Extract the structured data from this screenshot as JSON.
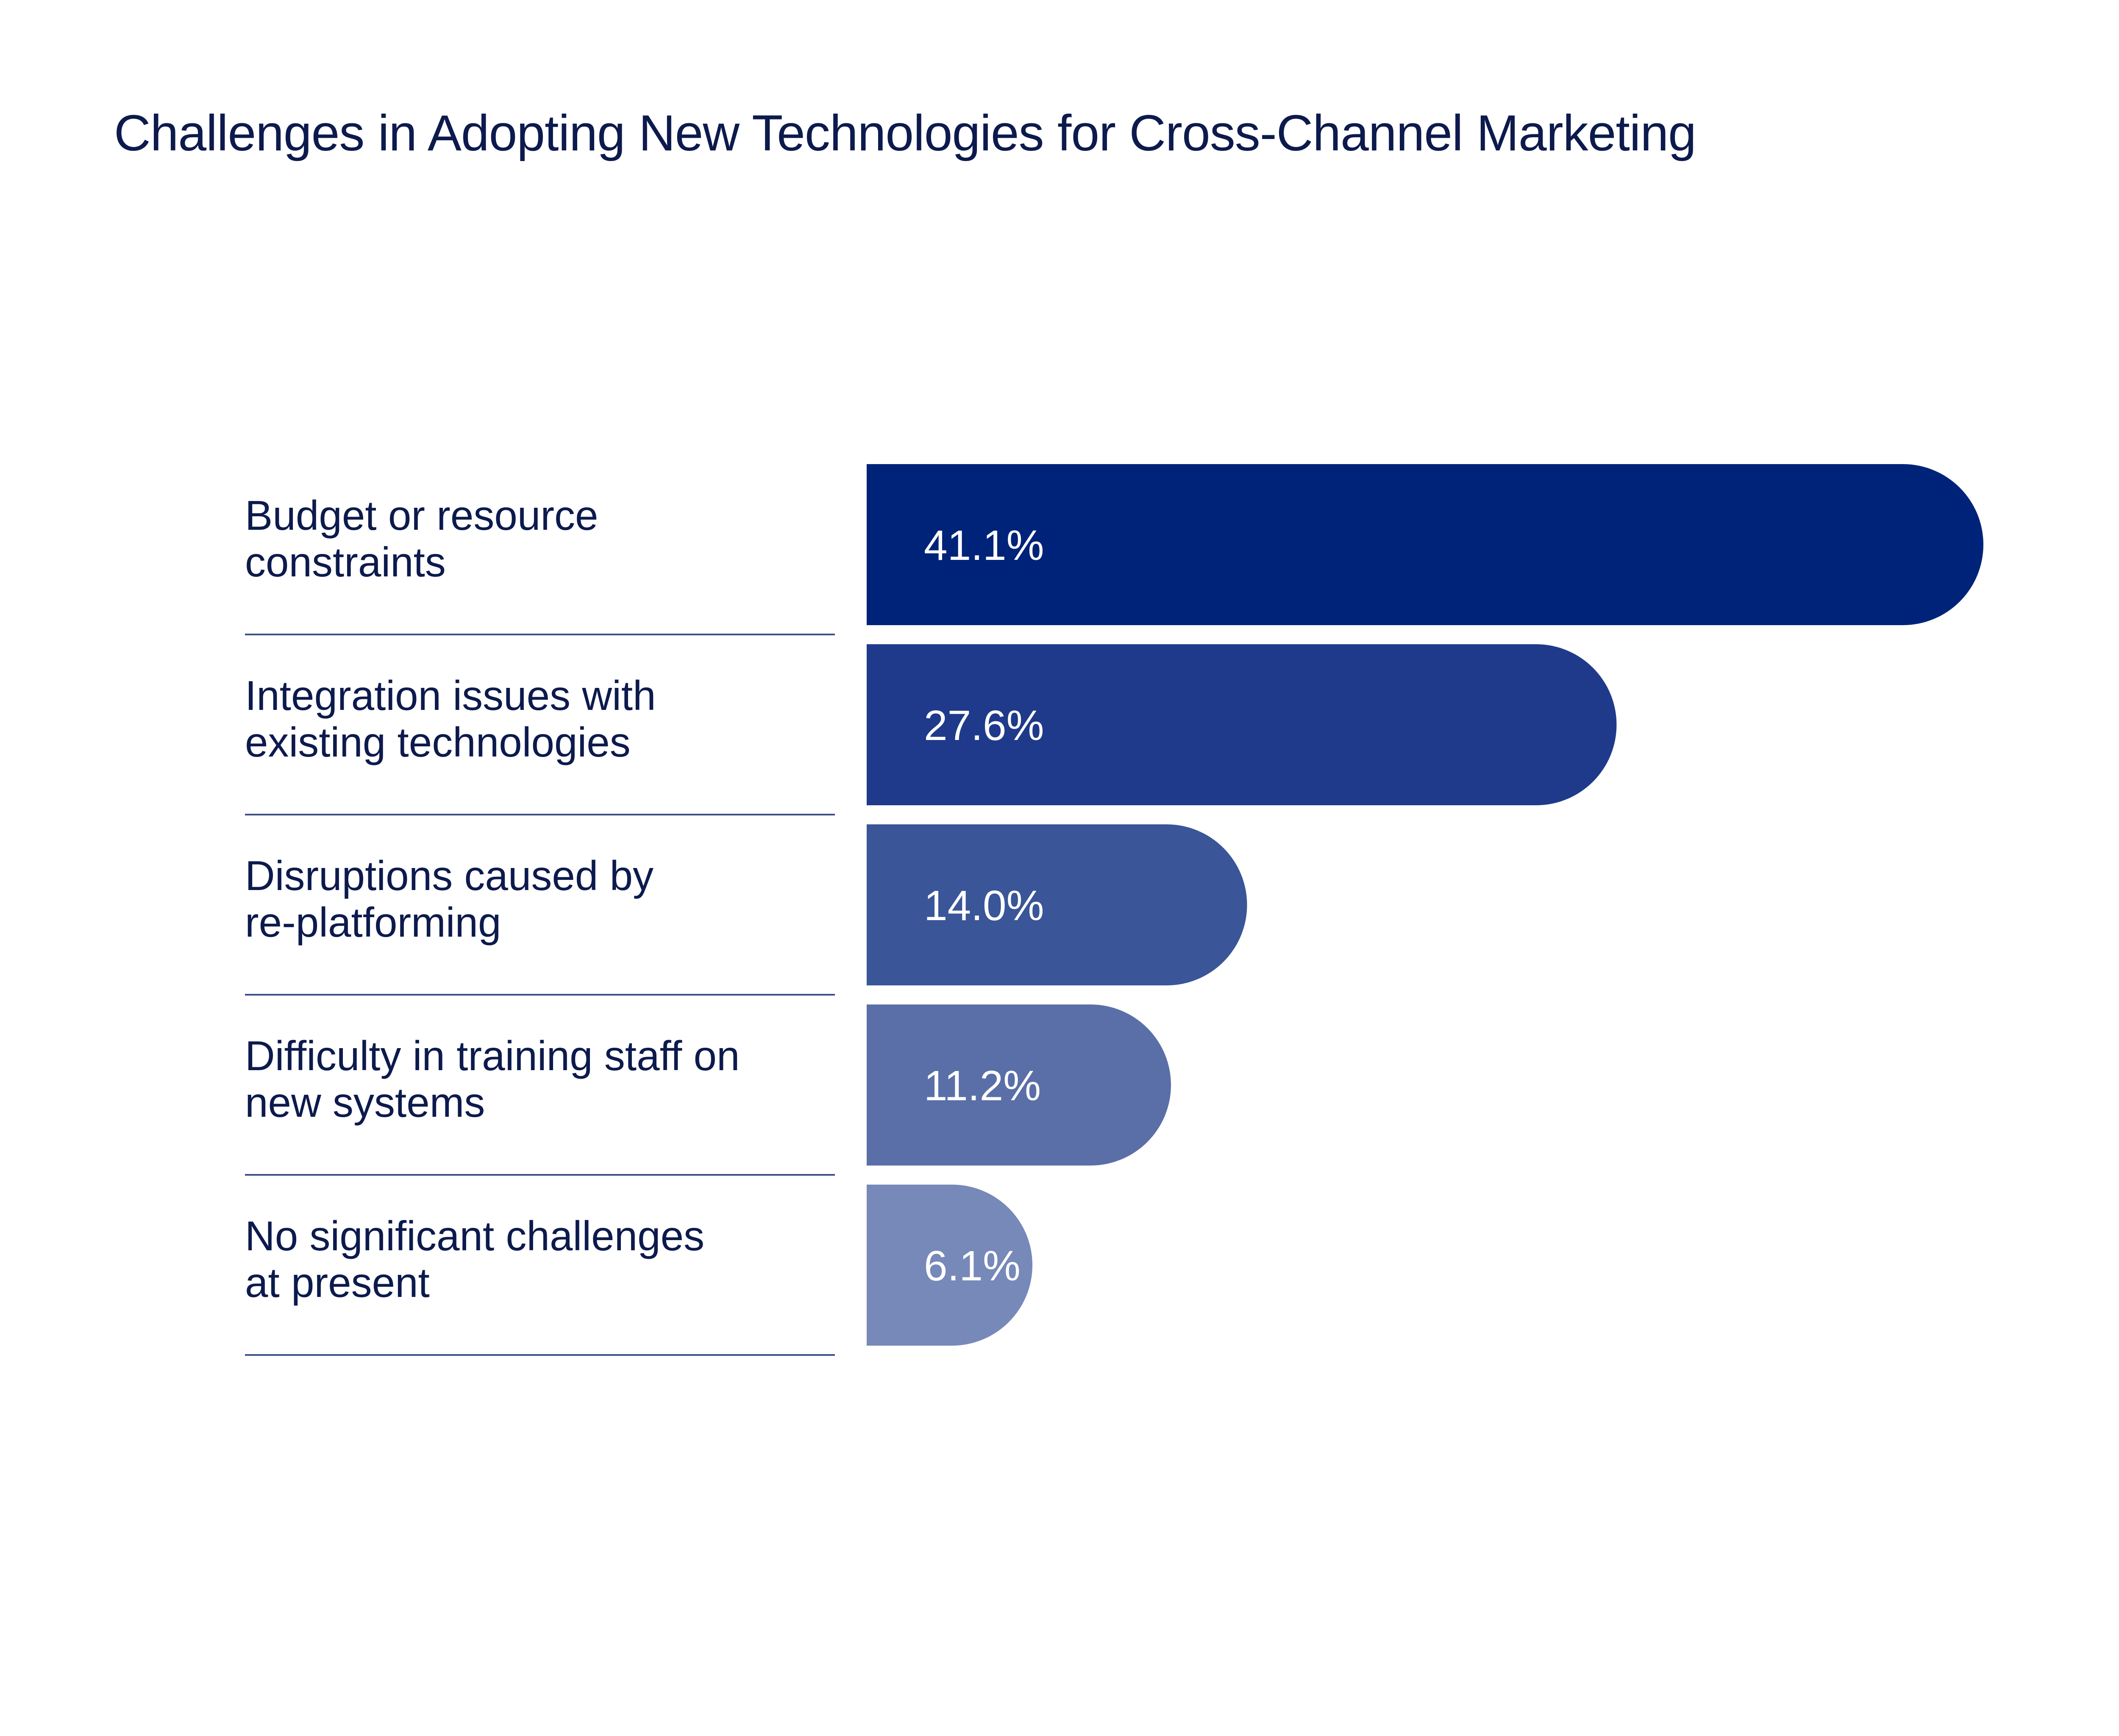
{
  "chart_data": {
    "type": "bar",
    "orientation": "horizontal",
    "title": "Challenges in Adopting New Technologies for Cross-Channel Marketing",
    "categories": [
      [
        "Budget or resource",
        "constraints"
      ],
      [
        "Integration issues with",
        "existing technologies"
      ],
      [
        "Disruptions caused by",
        "re-platforming"
      ],
      [
        "Difficulty in training staff on",
        "new systems"
      ],
      [
        "No significant challenges",
        "at present"
      ]
    ],
    "values": [
      41.1,
      27.6,
      14.0,
      11.2,
      6.1
    ],
    "value_labels": [
      "41.1%",
      "27.6%",
      "14.0%",
      "11.2%",
      "6.1%"
    ],
    "unit": "%",
    "bar_colors": [
      "#00237a",
      "#1f3a8b",
      "#3a5598",
      "#5a6fa8",
      "#7689b8"
    ],
    "divider_color": "#3d4f86",
    "grid": false,
    "legend": "none"
  }
}
